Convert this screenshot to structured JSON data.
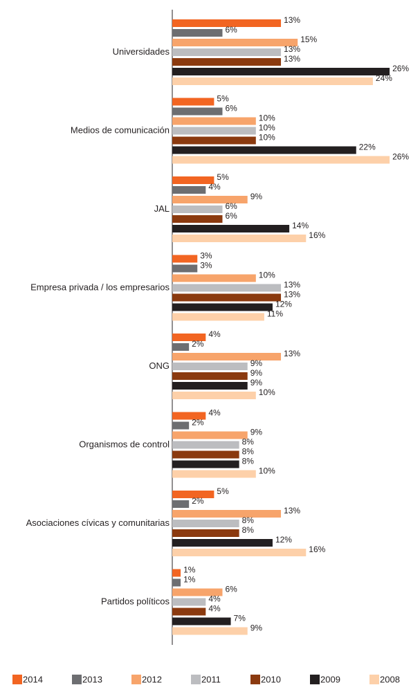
{
  "chart_data": {
    "type": "bar",
    "orientation": "horizontal",
    "categories": [
      "Universidades",
      "Medios de comunicación",
      "JAL",
      "Empresa privada / los empresarios",
      "ONG",
      "Organismos de control",
      "Asociaciones cívicas y comunitarias",
      "Partidos políticos"
    ],
    "series": [
      {
        "name": "2014",
        "color": "#f26522",
        "values": [
          13,
          5,
          5,
          3,
          4,
          4,
          5,
          1
        ],
        "value_labels": [
          "13%",
          "5%",
          "5%",
          "3%",
          "4%",
          "4%",
          "5%",
          "1%"
        ]
      },
      {
        "name": "2013",
        "color": "#6d6e71",
        "values": [
          6,
          6,
          4,
          3,
          2,
          2,
          2,
          1
        ],
        "value_labels": [
          "6%",
          "6%",
          "4%",
          "3%",
          "2%",
          "2%",
          "2%",
          "1%"
        ]
      },
      {
        "name": "2012",
        "color": "#f7a46b",
        "values": [
          15,
          10,
          9,
          10,
          13,
          9,
          13,
          6
        ],
        "value_labels": [
          "15%",
          "10%",
          "9%",
          "10%",
          "13%",
          "9%",
          "13%",
          "6%"
        ]
      },
      {
        "name": "2011",
        "color": "#bcbdc0",
        "values": [
          13,
          10,
          6,
          13,
          9,
          8,
          8,
          4
        ],
        "value_labels": [
          "13%",
          "10%",
          "6%",
          "13%",
          "9%",
          "8%",
          "8%",
          "4%"
        ]
      },
      {
        "name": "2010",
        "color": "#8b3a0f",
        "values": [
          13,
          10,
          6,
          13,
          9,
          8,
          8,
          4
        ],
        "value_labels": [
          "13%",
          "10%",
          "6%",
          "13%",
          "9%",
          "8%",
          "8%",
          "4%"
        ]
      },
      {
        "name": "2009",
        "color": "#231f20",
        "values": [
          26,
          22,
          14,
          12,
          9,
          8,
          12,
          7
        ],
        "value_labels": [
          "26%",
          "22%",
          "14%",
          "12%",
          "9%",
          "8%",
          "12%",
          "7%"
        ]
      },
      {
        "name": "2008",
        "color": "#fdd0a9",
        "values": [
          24,
          26,
          16,
          11,
          10,
          10,
          16,
          9
        ],
        "value_labels": [
          "24%",
          "26%",
          "16%",
          "11%",
          "10%",
          "10%",
          "16%",
          "9%"
        ]
      }
    ],
    "legend": "bottom"
  }
}
